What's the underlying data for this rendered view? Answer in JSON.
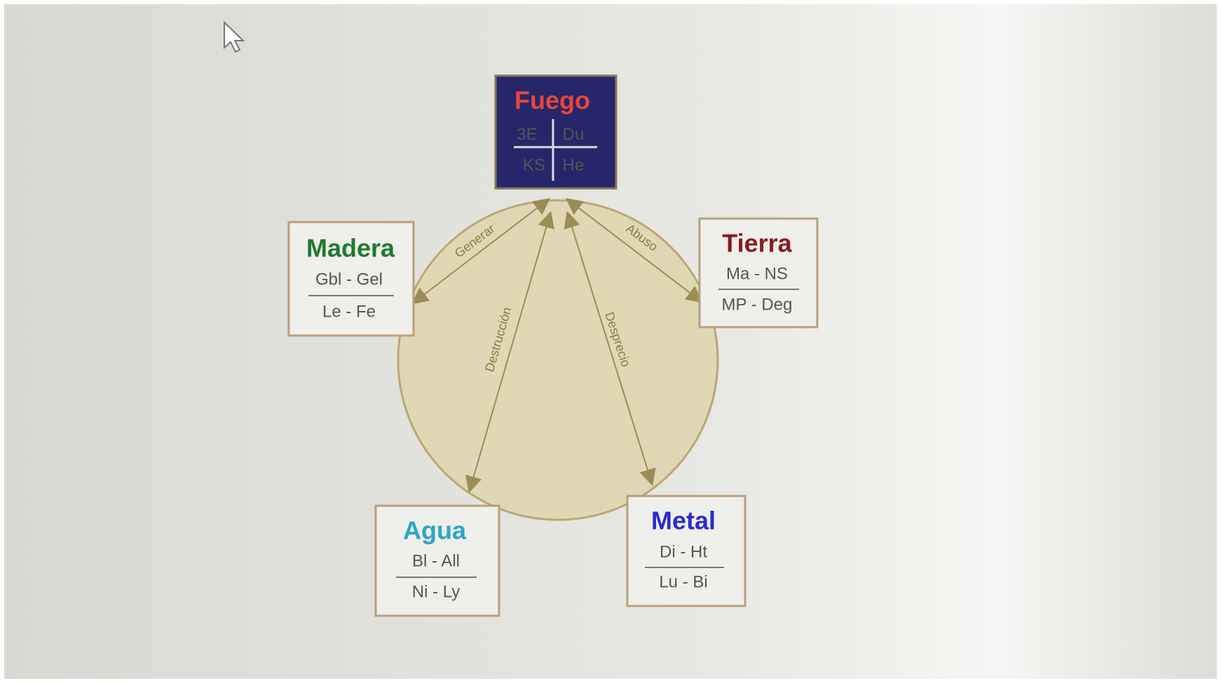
{
  "nodes": [
    {
      "label": "Fuego",
      "cells": [
        "3E",
        "Du",
        "KS",
        "He"
      ]
    },
    {
      "label": "Madera",
      "rows": [
        "Gbl - Gel",
        "Le - Fe"
      ]
    },
    {
      "label": "Tierra",
      "rows": [
        "Ma - NS",
        "MP - Deg"
      ]
    },
    {
      "label": "Agua",
      "rows": [
        "Bl - All",
        "Ni - Ly"
      ]
    },
    {
      "label": "Metal",
      "rows": [
        "Di - Ht",
        "Lu - Bi"
      ]
    }
  ],
  "edges": [
    {
      "label": "Generar"
    },
    {
      "label": "Abuso"
    },
    {
      "label": "Destrucción"
    },
    {
      "label": "Desprecio"
    }
  ]
}
